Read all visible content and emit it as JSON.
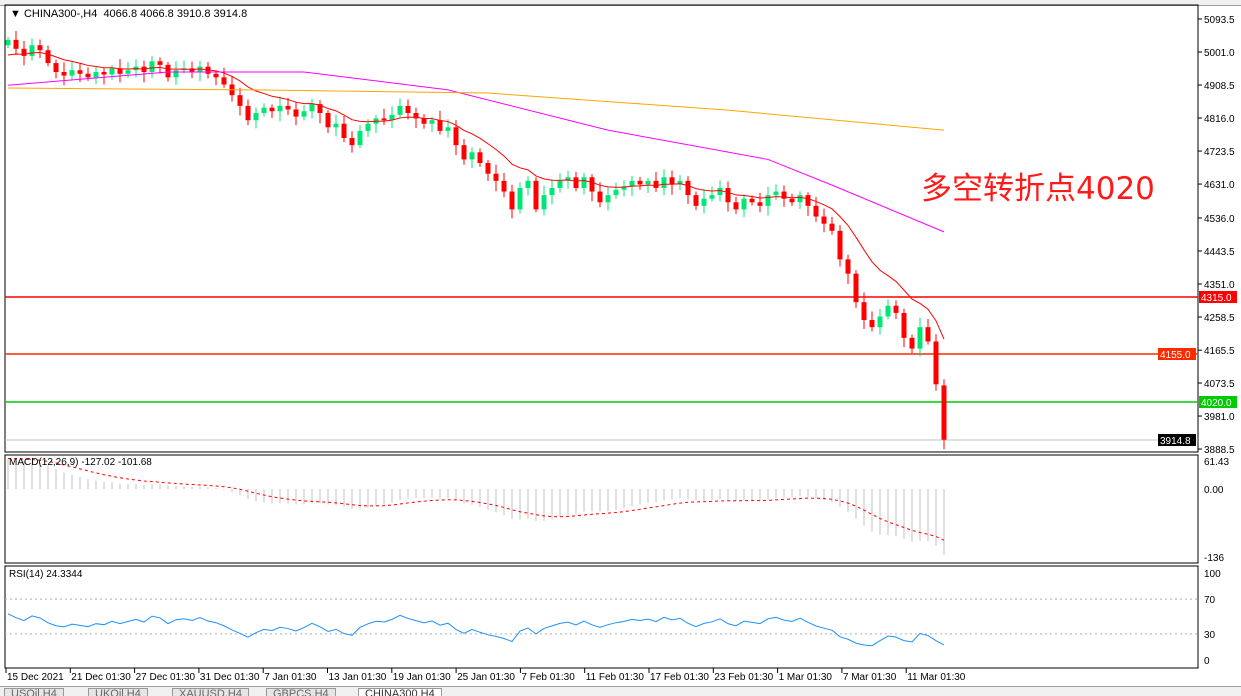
{
  "header": {
    "symbol": "CHINA300-,H4",
    "ohlc": "4066.8 4066.8 3910.8 3914.8"
  },
  "annotation": "多空转折点4020",
  "colors": {
    "bull": "#00e676",
    "bear": "#ff0000",
    "ma_fast": "#ff0000",
    "ma_mid": "#ff00ff",
    "ma_slow": "#ffa500",
    "macd_hist": "#c0c0c0",
    "macd_signal": "#ff0000",
    "rsi": "#1e90ff",
    "level_red": "#ff0000",
    "level_green": "#00cc00",
    "last_price": "#000000"
  },
  "price_axis": [
    "5093.5",
    "5001.0",
    "4908.5",
    "4816.0",
    "4723.5",
    "4631.0",
    "4536.0",
    "4443.5",
    "4351.0",
    "4258.5",
    "4165.5",
    "4073.5",
    "3981.0",
    "3888.5"
  ],
  "levels": [
    {
      "price": 4315.0,
      "label": "4315.0",
      "color": "#ff0000"
    },
    {
      "price": 4155.0,
      "label": "4155.0",
      "color": "#ff2a00"
    },
    {
      "price": 4020.0,
      "label": "4020.0",
      "color": "#00cc00"
    }
  ],
  "last_price": {
    "price": 3914.8,
    "label": "3914.8"
  },
  "candles": {
    "last_open": 4066.8,
    "closes": [
      5035,
      5010,
      4990,
      5020,
      5006,
      4970,
      4945,
      4935,
      4950,
      4940,
      4930,
      4945,
      4938,
      4955,
      4940,
      4950,
      4960,
      4945,
      4975,
      4965,
      4930,
      4950,
      4955,
      4945,
      4960,
      4940,
      4930,
      4910,
      4880,
      4850,
      4810,
      4830,
      4845,
      4835,
      4850,
      4840,
      4820,
      4835,
      4855,
      4830,
      4790,
      4800,
      4760,
      4740,
      4780,
      4800,
      4815,
      4810,
      4825,
      4850,
      4830,
      4815,
      4800,
      4810,
      4780,
      4790,
      4740,
      4700,
      4720,
      4690,
      4660,
      4640,
      4610,
      4560,
      4620,
      4640,
      4560,
      4600,
      4620,
      4640,
      4650,
      4620,
      4650,
      4610,
      4580,
      4600,
      4615,
      4625,
      4640,
      4630,
      4640,
      4620,
      4650,
      4630,
      4640,
      4600,
      4570,
      4590,
      4600,
      4620,
      4580,
      4560,
      4590,
      4580,
      4570,
      4600,
      4610,
      4590,
      4580,
      4600,
      4570,
      4540,
      4520,
      4500,
      4420,
      4380,
      4300,
      4250,
      4230,
      4260,
      4290,
      4270,
      4200,
      4170,
      4230,
      4190,
      4070,
      3914.8
    ]
  },
  "ma_mid": [
    [
      0,
      4908
    ],
    [
      20,
      4945
    ],
    [
      37,
      4945
    ],
    [
      55,
      4895
    ],
    [
      75,
      4782
    ],
    [
      95,
      4700
    ],
    [
      103,
      4628
    ],
    [
      117,
      4497
    ]
  ],
  "ma_slow": [
    [
      0,
      4900
    ],
    [
      30,
      4895
    ],
    [
      60,
      4886
    ],
    [
      90,
      4838
    ],
    [
      117,
      4782
    ]
  ],
  "macd": {
    "label": "MACD(12,26,9) -127.02 -101.68",
    "axis": [
      "61.43",
      "0.00",
      "-136"
    ]
  },
  "rsi": {
    "label": "RSI(14) 24.3344",
    "axis": [
      "100",
      "70",
      "30",
      "0"
    ]
  },
  "time_axis": [
    "15 Dec 2021",
    "21 Dec 01:30",
    "27 Dec 01:30",
    "31 Dec 01:30",
    "7 Jan 01:30",
    "13 Jan 01:30",
    "19 Jan 01:30",
    "25 Jan 01:30",
    "7 Feb 01:30",
    "11 Feb 01:30",
    "17 Feb 01:30",
    "23 Feb 01:30",
    "1 Mar 01:30",
    "7 Mar 01:30",
    "11 Mar 01:30"
  ],
  "tabs": [
    "USOil,H4",
    "UKOil,H4",
    "XAUUSD,H4",
    "GBPCS,H4",
    "CHINA300,H4"
  ]
}
